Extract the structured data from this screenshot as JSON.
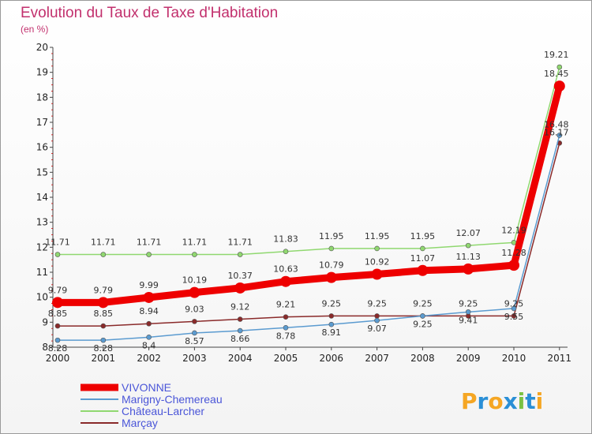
{
  "title": "Evolution du Taux de Taxe d'Habitation",
  "subtitle": "(en %)",
  "logo": {
    "letters": [
      "P",
      "r",
      "o",
      "x",
      "i",
      "t",
      "i"
    ],
    "colors": [
      "#f5a623",
      "#2a8fd6",
      "#f5a623",
      "#2a8fd6",
      "#7ac143",
      "#2a8fd6",
      "#f5a623"
    ]
  },
  "chart_data": {
    "type": "line",
    "x": [
      "2000",
      "2001",
      "2002",
      "2003",
      "2004",
      "2005",
      "2006",
      "2007",
      "2008",
      "2009",
      "2010",
      "2011"
    ],
    "ylim": [
      8,
      20
    ],
    "yticks": [
      "8",
      "9",
      "10",
      "11",
      "12",
      "13",
      "14",
      "15",
      "16",
      "17",
      "18",
      "19",
      "20"
    ],
    "grid": false,
    "legend": "bottom-left",
    "series": [
      {
        "name": "VIVONNE",
        "color": "#ee0000",
        "width": 9,
        "r": 7,
        "values": [
          9.79,
          9.79,
          9.99,
          10.19,
          10.37,
          10.63,
          10.79,
          10.92,
          11.07,
          11.13,
          11.28,
          18.45
        ],
        "labels": [
          "9.79",
          "9.79",
          "9.99",
          "10.19",
          "10.37",
          "10.63",
          "10.79",
          "10.92",
          "11.07",
          "11.13",
          "11.28",
          "18.45"
        ]
      },
      {
        "name": "Marigny-Chemereau",
        "color": "#5b9bd0",
        "width": 1.5,
        "r": 3,
        "values": [
          8.28,
          8.28,
          8.4,
          8.57,
          8.66,
          8.78,
          8.91,
          9.07,
          9.25,
          9.41,
          9.55,
          16.48
        ],
        "labels": [
          "8.28",
          "8.28",
          "8.4",
          "8.57",
          "8.66",
          "8.78",
          "8.91",
          "9.07",
          "9.25",
          "9.41",
          "9.55",
          "16.48"
        ]
      },
      {
        "name": "Château-Larcher",
        "color": "#90d870",
        "width": 1.5,
        "r": 3,
        "values": [
          11.71,
          11.71,
          11.71,
          11.71,
          11.71,
          11.83,
          11.95,
          11.95,
          11.95,
          12.07,
          12.19,
          19.21
        ],
        "labels": [
          "11.71",
          "11.71",
          "11.71",
          "11.71",
          "11.71",
          "11.83",
          "11.95",
          "11.95",
          "11.95",
          "12.07",
          "12.19",
          "19.21"
        ]
      },
      {
        "name": "Marçay",
        "color": "#8a2a2a",
        "width": 1.5,
        "r": 3,
        "values": [
          8.85,
          8.85,
          8.94,
          9.03,
          9.12,
          9.21,
          9.25,
          9.25,
          9.25,
          9.25,
          9.25,
          16.17
        ],
        "labels": [
          "8.85",
          "8.85",
          "8.94",
          "9.03",
          "9.12",
          "9.21",
          "9.25",
          "9.25",
          "9.25",
          "9.25",
          "9.25",
          "16.17"
        ]
      }
    ]
  }
}
